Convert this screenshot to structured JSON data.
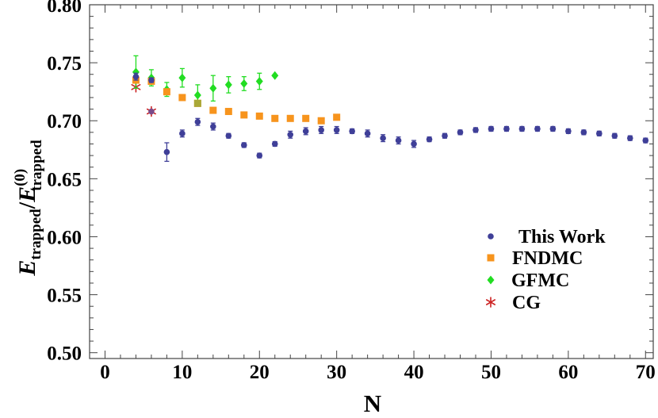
{
  "chart_data": {
    "type": "scatter",
    "xlabel": "N",
    "ylabel": {
      "main": "E",
      "main_sub": "trapped",
      "slash": "/",
      "denom": "E",
      "denom_sup": "(0)",
      "denom_sub": "trapped"
    },
    "xlim": [
      -2,
      71
    ],
    "ylim": [
      0.495,
      0.8
    ],
    "xticks": [
      0,
      10,
      20,
      30,
      40,
      50,
      60,
      70
    ],
    "yticks": [
      0.5,
      0.55,
      0.6,
      0.65,
      0.7,
      0.75,
      0.8
    ],
    "ytick_labels": [
      "0.50",
      "0.55",
      "0.60",
      "0.65",
      "0.70",
      "0.75",
      "0.80"
    ],
    "legend_position": "right",
    "series": [
      {
        "name": "This Work",
        "marker": "circle",
        "color": "#3f3f98",
        "points": [
          {
            "x": 4,
            "y": 0.738,
            "err": 0.003
          },
          {
            "x": 6,
            "y": 0.735,
            "err": 0.002
          },
          {
            "x": 8,
            "y": 0.673,
            "err": 0.008
          },
          {
            "x": 10,
            "y": 0.689,
            "err": 0.003
          },
          {
            "x": 12,
            "y": 0.699,
            "err": 0.003
          },
          {
            "x": 14,
            "y": 0.695,
            "err": 0.003
          },
          {
            "x": 16,
            "y": 0.687,
            "err": 0.002
          },
          {
            "x": 18,
            "y": 0.679,
            "err": 0.002
          },
          {
            "x": 20,
            "y": 0.67,
            "err": 0.002
          },
          {
            "x": 22,
            "y": 0.68,
            "err": 0.002
          },
          {
            "x": 24,
            "y": 0.688,
            "err": 0.003
          },
          {
            "x": 26,
            "y": 0.691,
            "err": 0.003
          },
          {
            "x": 28,
            "y": 0.692,
            "err": 0.003
          },
          {
            "x": 30,
            "y": 0.692,
            "err": 0.003
          },
          {
            "x": 32,
            "y": 0.691,
            "err": 0.002
          },
          {
            "x": 34,
            "y": 0.689,
            "err": 0.003
          },
          {
            "x": 36,
            "y": 0.685,
            "err": 0.003
          },
          {
            "x": 38,
            "y": 0.683,
            "err": 0.003
          },
          {
            "x": 40,
            "y": 0.68,
            "err": 0.003
          },
          {
            "x": 42,
            "y": 0.684,
            "err": 0.002
          },
          {
            "x": 44,
            "y": 0.687,
            "err": 0.002
          },
          {
            "x": 46,
            "y": 0.69,
            "err": 0.002
          },
          {
            "x": 48,
            "y": 0.692,
            "err": 0.002
          },
          {
            "x": 50,
            "y": 0.693,
            "err": 0.002
          },
          {
            "x": 52,
            "y": 0.693,
            "err": 0.002
          },
          {
            "x": 54,
            "y": 0.693,
            "err": 0.002
          },
          {
            "x": 56,
            "y": 0.693,
            "err": 0.002
          },
          {
            "x": 58,
            "y": 0.693,
            "err": 0.002
          },
          {
            "x": 60,
            "y": 0.691,
            "err": 0.002
          },
          {
            "x": 62,
            "y": 0.69,
            "err": 0.002
          },
          {
            "x": 64,
            "y": 0.689,
            "err": 0.002
          },
          {
            "x": 66,
            "y": 0.687,
            "err": 0.002
          },
          {
            "x": 68,
            "y": 0.685,
            "err": 0.002
          },
          {
            "x": 70,
            "y": 0.683,
            "err": 0.002
          }
        ]
      },
      {
        "name": "FNDMC",
        "marker": "square",
        "color": "#f7941d",
        "points": [
          {
            "x": 4,
            "y": 0.735,
            "err": 0
          },
          {
            "x": 6,
            "y": 0.734,
            "err": 0
          },
          {
            "x": 8,
            "y": 0.725,
            "err": 0
          },
          {
            "x": 10,
            "y": 0.72,
            "err": 0
          },
          {
            "x": 12,
            "y": 0.715,
            "err": 0
          },
          {
            "x": 14,
            "y": 0.709,
            "err": 0
          },
          {
            "x": 16,
            "y": 0.708,
            "err": 0
          },
          {
            "x": 18,
            "y": 0.705,
            "err": 0
          },
          {
            "x": 20,
            "y": 0.704,
            "err": 0
          },
          {
            "x": 22,
            "y": 0.702,
            "err": 0
          },
          {
            "x": 24,
            "y": 0.702,
            "err": 0
          },
          {
            "x": 26,
            "y": 0.702,
            "err": 0
          },
          {
            "x": 28,
            "y": 0.7,
            "err": 0
          },
          {
            "x": 30,
            "y": 0.703,
            "err": 0
          }
        ]
      },
      {
        "name": "GFMC",
        "marker": "diamond",
        "color": "#22dd22",
        "points": [
          {
            "x": 4,
            "y": 0.742,
            "err": 0.014
          },
          {
            "x": 6,
            "y": 0.737,
            "err": 0.007
          },
          {
            "x": 8,
            "y": 0.727,
            "err": 0.006
          },
          {
            "x": 10,
            "y": 0.737,
            "err": 0.008
          },
          {
            "x": 12,
            "y": 0.722,
            "err": 0.009
          },
          {
            "x": 14,
            "y": 0.728,
            "err": 0.011
          },
          {
            "x": 16,
            "y": 0.731,
            "err": 0.007
          },
          {
            "x": 18,
            "y": 0.732,
            "err": 0.006
          },
          {
            "x": 20,
            "y": 0.734,
            "err": 0.007
          },
          {
            "x": 22,
            "y": 0.739,
            "err": 0
          }
        ]
      },
      {
        "name": "CG",
        "marker": "asterisk",
        "color": "#cc2222",
        "points": [
          {
            "x": 4,
            "y": 0.729,
            "err": 0
          },
          {
            "x": 6,
            "y": 0.708,
            "err": 0
          }
        ]
      }
    ],
    "extra_marks": [
      {
        "x": 6,
        "y": 0.708,
        "marker": "circle",
        "color": "#7a4a8a"
      },
      {
        "x": 12,
        "y": 0.715,
        "marker": "square",
        "color": "#a9a838"
      }
    ]
  }
}
